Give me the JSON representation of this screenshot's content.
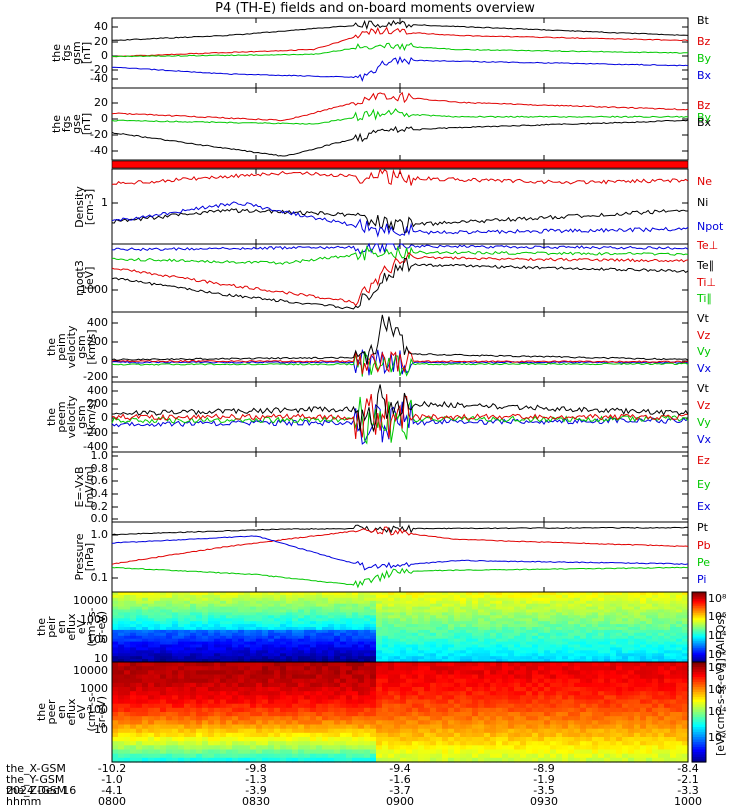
{
  "title": "P4 (TH-E) fields and on-board moments overview",
  "colors": {
    "black": "#000000",
    "red": "#e00000",
    "green": "#00c800",
    "blue": "#0000dd"
  },
  "chart_data": [
    {
      "type": "line",
      "panel": "fgs_gsm",
      "ylabel": [
        "the",
        "fgs",
        "gsm",
        "[nT]"
      ],
      "yticks": [
        "40",
        "20",
        "0",
        "-20",
        "-40"
      ],
      "series": [
        {
          "name": "Bt",
          "color": "black"
        },
        {
          "name": "Bz",
          "color": "red"
        },
        {
          "name": "By",
          "color": "green"
        },
        {
          "name": "Bx",
          "color": "blue"
        }
      ]
    },
    {
      "type": "line",
      "panel": "fgs_gse",
      "ylabel": [
        "the",
        "fgs",
        "gse",
        "[nT]"
      ],
      "yticks": [
        "20",
        "0",
        "-20",
        "-40"
      ],
      "series": [
        {
          "name": "Bz",
          "color": "red"
        },
        {
          "name": "By",
          "color": "green"
        },
        {
          "name": "Bx",
          "color": "black"
        }
      ]
    },
    {
      "type": "bar",
      "panel": "mode_bar"
    },
    {
      "type": "line",
      "panel": "density",
      "ylabel": [
        "Density",
        "[cm-3]"
      ],
      "yticks": [
        "1"
      ],
      "series": [
        {
          "name": "Ne",
          "color": "red"
        },
        {
          "name": "Ni",
          "color": "black"
        },
        {
          "name": "Npot",
          "color": "blue"
        }
      ]
    },
    {
      "type": "line",
      "panel": "temperature",
      "ylabel": [
        "moqt3",
        "[eV]"
      ],
      "yticks": [
        "1000"
      ],
      "series": [
        {
          "name": "Te⊥",
          "color": "red"
        },
        {
          "name": "Te∥",
          "color": "black"
        },
        {
          "name": "Ti⊥",
          "color": "red"
        },
        {
          "name": "Ti∥",
          "color": "green"
        }
      ]
    },
    {
      "type": "line",
      "panel": "peim_velocity",
      "ylabel": [
        "the",
        "peim",
        "velocity",
        "gsm",
        "[km/s]"
      ],
      "yticks": [
        "400",
        "200",
        "0",
        "-200"
      ],
      "series": [
        {
          "name": "Vt",
          "color": "black"
        },
        {
          "name": "Vz",
          "color": "red"
        },
        {
          "name": "Vy",
          "color": "green"
        },
        {
          "name": "Vx",
          "color": "blue"
        }
      ]
    },
    {
      "type": "line",
      "panel": "peem_velocity",
      "ylabel": [
        "the",
        "peem",
        "velocity",
        "gsm",
        "[km/s]"
      ],
      "yticks": [
        "400",
        "200",
        "0",
        "-200",
        "-400"
      ],
      "series": [
        {
          "name": "Vt",
          "color": "black"
        },
        {
          "name": "Vz",
          "color": "red"
        },
        {
          "name": "Vy",
          "color": "green"
        },
        {
          "name": "Vx",
          "color": "blue"
        }
      ]
    },
    {
      "type": "line",
      "panel": "efield",
      "ylabel": [
        "E=-VxB",
        "[mV/m]"
      ],
      "yticks": [
        "1.0",
        "0.8",
        "0.6",
        "0.4",
        "0.2",
        "0.0"
      ],
      "series": [
        {
          "name": "Ez",
          "color": "red"
        },
        {
          "name": "Ey",
          "color": "green"
        },
        {
          "name": "Ex",
          "color": "blue"
        }
      ]
    },
    {
      "type": "line",
      "panel": "pressure",
      "ylabel": [
        "Pressure",
        "[nPa]"
      ],
      "yticks": [
        "1.0",
        "0.1"
      ],
      "series": [
        {
          "name": "Pt",
          "color": "black"
        },
        {
          "name": "Pb",
          "color": "red"
        },
        {
          "name": "Pe",
          "color": "green"
        },
        {
          "name": "Pi",
          "color": "blue"
        }
      ]
    },
    {
      "type": "heatmap",
      "panel": "peir_eflux",
      "ylabel": [
        "the",
        "peir",
        "en",
        "eflux",
        "eV",
        "(cm²-s-",
        "sr-eV)"
      ],
      "yticks": [
        "10000",
        "1000",
        "100",
        "10"
      ]
    },
    {
      "type": "heatmap",
      "panel": "peer_eflux",
      "ylabel": [
        "the",
        "peer",
        "en",
        "eflux",
        "eV",
        "(cm²-s-",
        "sr-eV)"
      ],
      "yticks": [
        "10000",
        "1000",
        "100",
        "10"
      ]
    }
  ],
  "colorbar": {
    "ticks": [
      "10⁸",
      "10⁶",
      "10⁴",
      "10²",
      "10⁸",
      "10⁶",
      "10⁴",
      "10²"
    ],
    "label": "[eV/(cm²-s-sr-eV)] (All Qs)"
  },
  "xaxis": {
    "rows": [
      {
        "name": "the_X-GSM",
        "values": [
          "-10.2",
          "-9.8",
          "-9.4",
          "-8.9",
          "-8.4"
        ]
      },
      {
        "name": "the_Y-GSM",
        "values": [
          "-1.0",
          "-1.3",
          "-1.6",
          "-1.9",
          "-2.1"
        ]
      },
      {
        "name": "the_Z-GSM",
        "values": [
          "-4.1",
          "-3.9",
          "-3.7",
          "-3.5",
          "-3.3"
        ]
      },
      {
        "name": "hhmm",
        "values": [
          "0800",
          "0830",
          "0900",
          "0930",
          "1000"
        ]
      }
    ],
    "date": "2024 Dec 16"
  }
}
